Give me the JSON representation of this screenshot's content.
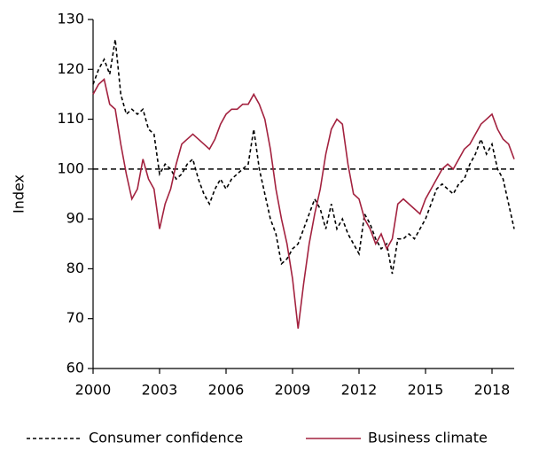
{
  "chart_data": {
    "type": "line",
    "y_label": "Index",
    "x": [
      2000,
      2000.25,
      2000.5,
      2000.75,
      2001,
      2001.25,
      2001.5,
      2001.75,
      2002,
      2002.25,
      2002.5,
      2002.75,
      2003,
      2003.25,
      2003.5,
      2003.75,
      2004,
      2004.25,
      2004.5,
      2004.75,
      2005,
      2005.25,
      2005.5,
      2005.75,
      2006,
      2006.25,
      2006.5,
      2006.75,
      2007,
      2007.25,
      2007.5,
      2007.75,
      2008,
      2008.25,
      2008.5,
      2008.75,
      2009,
      2009.25,
      2009.5,
      2009.75,
      2010,
      2010.25,
      2010.5,
      2010.75,
      2011,
      2011.25,
      2011.5,
      2011.75,
      2012,
      2012.25,
      2012.5,
      2012.75,
      2013,
      2013.25,
      2013.5,
      2013.75,
      2014,
      2014.25,
      2014.5,
      2014.75,
      2015,
      2015.25,
      2015.5,
      2015.75,
      2016,
      2016.25,
      2016.5,
      2016.75,
      2017,
      2017.25,
      2017.5,
      2017.75,
      2018,
      2018.25,
      2018.5,
      2018.75,
      2019
    ],
    "series": [
      {
        "name": "Consumer confidence",
        "color": "#000000",
        "dash": true,
        "values": [
          117,
          120,
          122,
          119,
          126,
          115,
          111,
          112,
          111,
          112,
          108,
          107,
          99,
          101,
          100,
          98,
          99,
          101,
          102,
          98,
          95,
          93,
          96,
          98,
          96,
          98,
          99,
          100,
          101,
          108,
          100,
          95,
          90,
          87,
          81,
          82,
          84,
          85,
          88,
          91,
          94,
          92,
          88,
          93,
          88,
          90,
          87,
          85,
          83,
          91,
          89,
          86,
          84,
          85,
          79,
          86,
          86,
          87,
          86,
          88,
          90,
          93,
          96,
          97,
          96,
          95,
          97,
          98,
          101,
          103,
          106,
          103,
          105,
          100,
          98,
          93,
          88
        ]
      },
      {
        "name": "Business climate",
        "color": "#a3223f",
        "dash": false,
        "values": [
          115,
          117,
          118,
          113,
          112,
          105,
          99,
          94,
          96,
          102,
          98,
          96,
          88,
          93,
          96,
          101,
          105,
          106,
          107,
          106,
          105,
          104,
          106,
          109,
          111,
          112,
          112,
          113,
          113,
          115,
          113,
          110,
          104,
          96,
          90,
          85,
          78,
          68,
          77,
          85,
          91,
          96,
          103,
          108,
          110,
          109,
          101,
          95,
          94,
          90,
          88,
          85,
          87,
          84,
          86,
          93,
          94,
          93,
          92,
          91,
          94,
          96,
          98,
          100,
          101,
          100,
          102,
          104,
          105,
          107,
          109,
          110,
          111,
          108,
          106,
          105,
          102
        ]
      }
    ],
    "hline": 100,
    "xlim": [
      2000,
      2019
    ],
    "xticks": [
      2000,
      2003,
      2006,
      2009,
      2012,
      2015,
      2018
    ],
    "ylim": [
      60,
      130
    ],
    "yticks": [
      60,
      70,
      80,
      90,
      100,
      110,
      120,
      130
    ],
    "legend": "bottom"
  }
}
